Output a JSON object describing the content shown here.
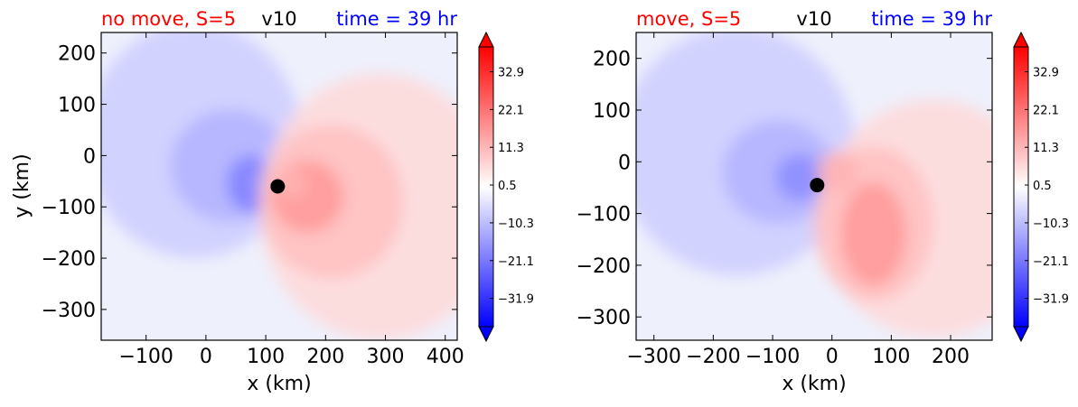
{
  "colors": {
    "title_left": "#ff0000",
    "title_center": "#000000",
    "title_right": "#0000ff",
    "marker": "#000000",
    "cmap_min": "#0000ff",
    "cmap_mid": "#ffffff",
    "cmap_max": "#ff0000"
  },
  "chart_data": [
    {
      "type": "heatmap",
      "title_left": "no move, S=5",
      "title_center": "v10",
      "title_right": "time = 39 hr",
      "xlabel": "x (km)",
      "ylabel": "y (km)",
      "xlim": [
        -175,
        420
      ],
      "ylim": [
        -360,
        240
      ],
      "xticks": [
        "−100",
        "0",
        "100",
        "200",
        "300",
        "400"
      ],
      "xtick_values": [
        -100,
        0,
        100,
        200,
        300,
        400
      ],
      "yticks": [
        "200",
        "100",
        "0",
        "−100",
        "−200",
        "−300"
      ],
      "ytick_values": [
        200,
        100,
        0,
        -100,
        -200,
        -300
      ],
      "center": [
        120,
        -60
      ],
      "blobs": [
        {
          "x": -20,
          "y": 30,
          "rx": 180,
          "ry": 230,
          "v": -4
        },
        {
          "x": 40,
          "y": -20,
          "rx": 100,
          "ry": 110,
          "v": -6
        },
        {
          "x": 75,
          "y": -55,
          "rx": 40,
          "ry": 55,
          "v": -10
        },
        {
          "x": 95,
          "y": -50,
          "rx": 18,
          "ry": 30,
          "v": -8
        },
        {
          "x": 290,
          "y": -100,
          "rx": 200,
          "ry": 260,
          "v": 3
        },
        {
          "x": 210,
          "y": -90,
          "rx": 120,
          "ry": 150,
          "v": 5
        },
        {
          "x": 170,
          "y": -80,
          "rx": 60,
          "ry": 70,
          "v": 8
        },
        {
          "x": 145,
          "y": -55,
          "rx": 25,
          "ry": 30,
          "v": 6
        }
      ],
      "colorbar": {
        "ticks": [
          "32.9",
          "22.1",
          "11.3",
          "0.5",
          "−10.3",
          "−21.1",
          "−31.9"
        ],
        "tick_values": [
          32.9,
          22.1,
          11.3,
          0.5,
          -10.3,
          -21.1,
          -31.9
        ],
        "range": [
          -40,
          40
        ],
        "extend": "both"
      }
    },
    {
      "type": "heatmap",
      "title_left": "move, S=5",
      "title_center": "v10",
      "title_right": "time = 39 hr",
      "xlabel": "x (km)",
      "ylabel": "",
      "xlim": [
        -330,
        270
      ],
      "ylim": [
        -345,
        250
      ],
      "xticks": [
        "−300",
        "−200",
        "−100",
        "0",
        "100",
        "200"
      ],
      "xtick_values": [
        -300,
        -200,
        -100,
        0,
        100,
        200
      ],
      "yticks": [
        "200",
        "100",
        "0",
        "−100",
        "−200",
        "−300"
      ],
      "ytick_values": [
        200,
        100,
        0,
        -100,
        -200,
        -300
      ],
      "center": [
        -25,
        -45
      ],
      "blobs": [
        {
          "x": -160,
          "y": 20,
          "rx": 200,
          "ry": 240,
          "v": -4
        },
        {
          "x": -90,
          "y": -20,
          "rx": 95,
          "ry": 100,
          "v": -6
        },
        {
          "x": -55,
          "y": -30,
          "rx": 40,
          "ry": 45,
          "v": -9
        },
        {
          "x": 170,
          "y": -110,
          "rx": 190,
          "ry": 230,
          "v": 3
        },
        {
          "x": 70,
          "y": -120,
          "rx": 100,
          "ry": 150,
          "v": 5
        },
        {
          "x": 70,
          "y": -140,
          "rx": 55,
          "ry": 100,
          "v": 8
        },
        {
          "x": 10,
          "y": -20,
          "rx": 35,
          "ry": 40,
          "v": 6
        }
      ],
      "colorbar": {
        "ticks": [
          "32.9",
          "22.1",
          "11.3",
          "0.5",
          "−10.3",
          "−21.1",
          "−31.9"
        ],
        "tick_values": [
          32.9,
          22.1,
          11.3,
          0.5,
          -10.3,
          -21.1,
          -31.9
        ],
        "range": [
          -40,
          40
        ],
        "extend": "both"
      }
    }
  ]
}
